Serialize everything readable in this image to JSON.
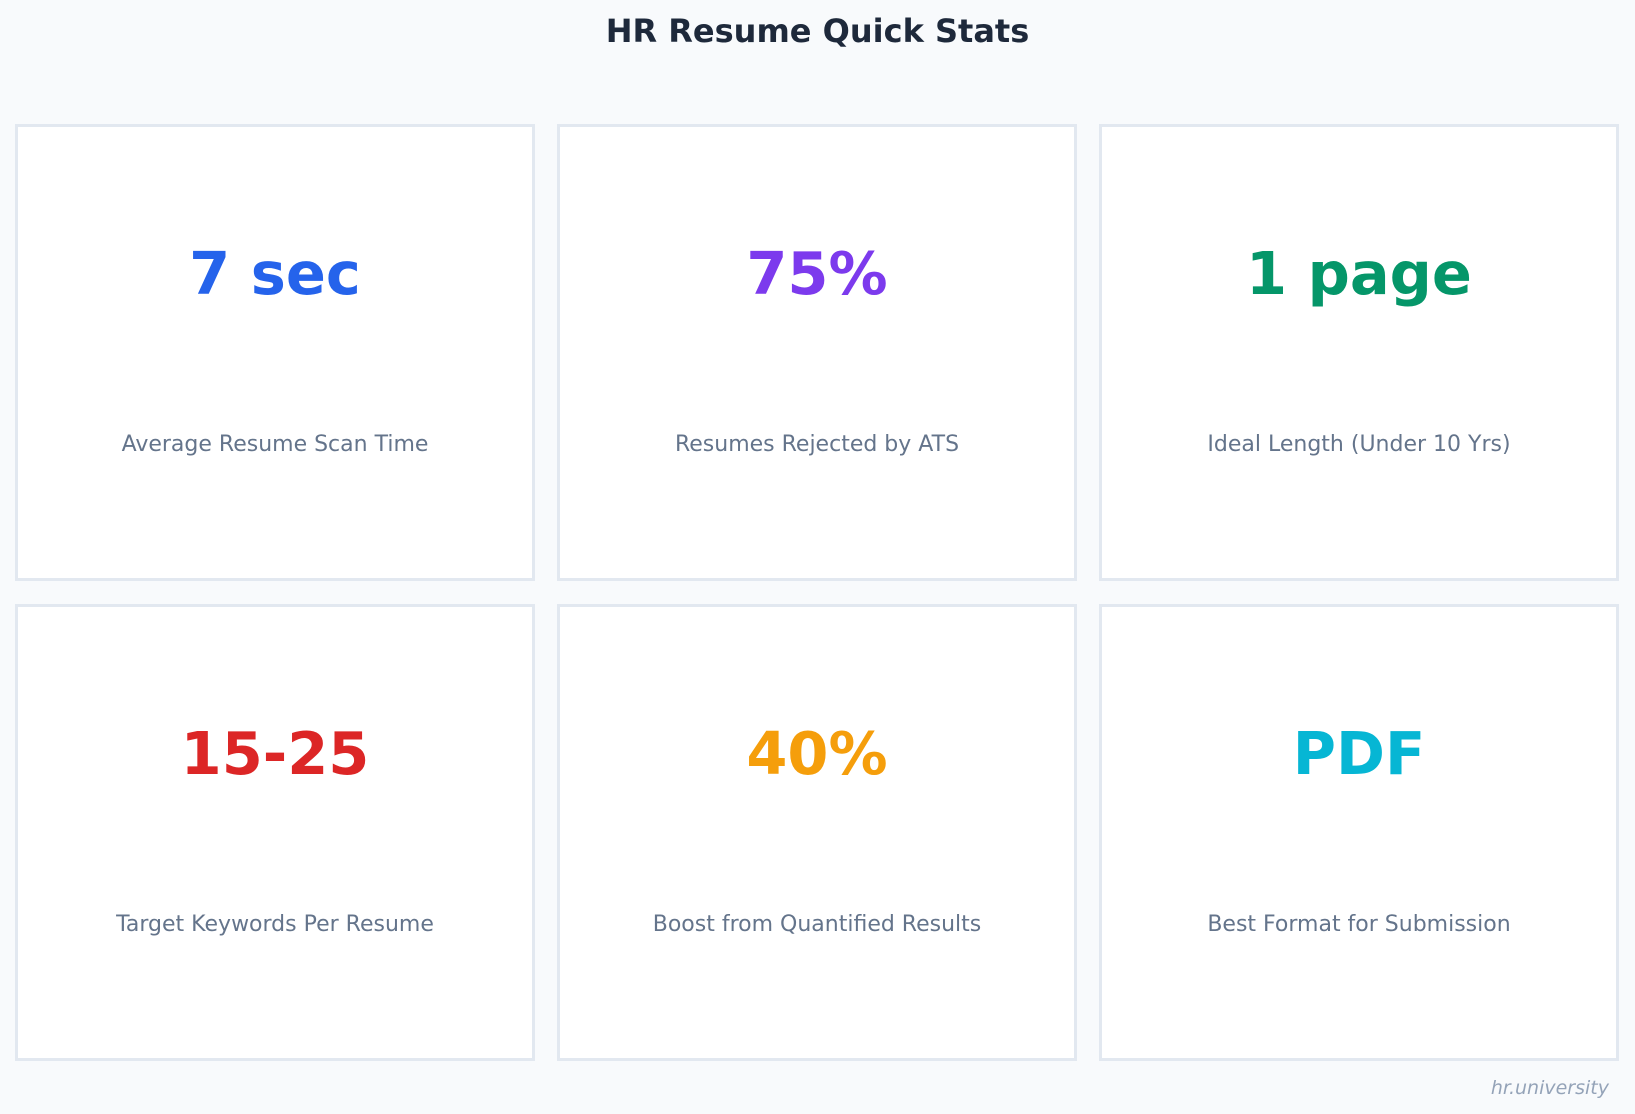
{
  "title": "HR Resume Quick Stats",
  "watermark": "hr.university",
  "chart_data": {
    "type": "table",
    "title": "HR Resume Quick Stats",
    "cards": [
      {
        "value": "7 sec",
        "label": "Average Resume Scan Time",
        "color": "#2563eb"
      },
      {
        "value": "75%",
        "label": "Resumes Rejected by ATS",
        "color": "#7c3aed"
      },
      {
        "value": "1 page",
        "label": "Ideal Length (Under 10 Yrs)",
        "color": "#059669"
      },
      {
        "value": "15-25",
        "label": "Target Keywords Per Resume",
        "color": "#dc2626"
      },
      {
        "value": "40%",
        "label": "Boost from Quantified Results",
        "color": "#f59e0b"
      },
      {
        "value": "PDF",
        "label": "Best Format for Submission",
        "color": "#06b6d4"
      }
    ]
  }
}
